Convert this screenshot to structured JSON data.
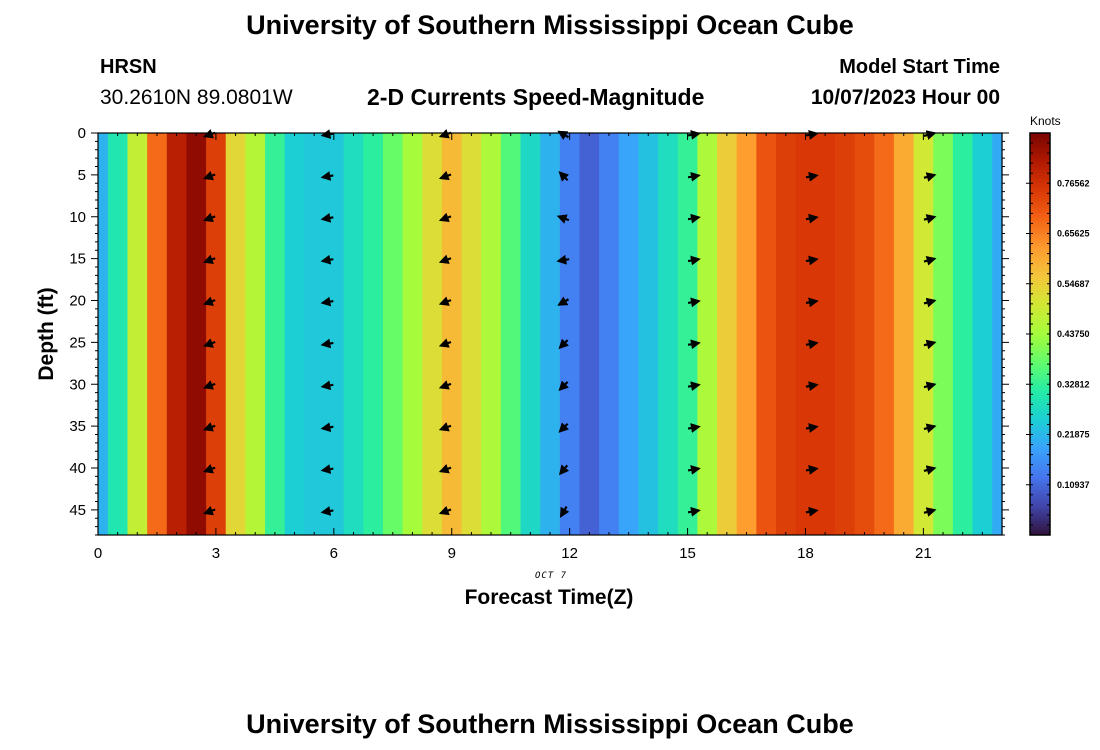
{
  "header": {
    "title": "University of Southern Mississippi Ocean Cube",
    "station": "HRSN",
    "coordinates": "30.2610N  89.0801W",
    "subtitle": "2-D Currents Speed-Magnitude",
    "model_start_label": "Model Start Time",
    "model_start_value": "10/07/2023 Hour 00"
  },
  "footer": {
    "title": "University of Southern Mississippi Ocean Cube"
  },
  "chart_data": {
    "type": "heatmap",
    "xlabel": "Forecast Time(Z)",
    "ylabel": "Depth (ft)",
    "date_label": "OCT 7",
    "x_ticks": [
      0,
      3,
      6,
      9,
      12,
      15,
      18,
      21
    ],
    "y_ticks": [
      0,
      5,
      10,
      15,
      20,
      25,
      30,
      35,
      40,
      45
    ],
    "xlim": [
      0,
      23
    ],
    "ylim": [
      48,
      0
    ],
    "colorbar": {
      "label": "Knots",
      "ticks": [
        "0.10937",
        "0.21875",
        "0.32812",
        "0.43750",
        "0.54687",
        "0.65625",
        "0.76562"
      ],
      "range": [
        0.0,
        0.875
      ],
      "colormap": [
        "#30123b",
        "#4145ab",
        "#4675ed",
        "#39a2fc",
        "#1bcfd4",
        "#24eca6",
        "#61fc6c",
        "#a4fc3b",
        "#d1e834",
        "#f3c63a",
        "#fe9b2d",
        "#f36315",
        "#d93806",
        "#b11901",
        "#7a0402"
      ]
    },
    "hours": [
      0,
      0.5,
      1,
      1.5,
      2,
      2.5,
      3,
      3.5,
      4,
      4.5,
      5,
      5.5,
      6,
      6.5,
      7,
      7.5,
      8,
      8.5,
      9,
      9.5,
      10,
      10.5,
      11,
      11.5,
      12,
      12.5,
      13,
      13.5,
      14,
      14.5,
      15,
      15.5,
      16,
      16.5,
      17,
      17.5,
      18,
      18.5,
      19,
      19.5,
      20,
      20.5,
      21,
      21.5,
      22,
      22.5,
      23
    ],
    "speed_knots": [
      0.21,
      0.3,
      0.48,
      0.68,
      0.8,
      0.85,
      0.74,
      0.53,
      0.46,
      0.33,
      0.25,
      0.24,
      0.24,
      0.28,
      0.32,
      0.38,
      0.44,
      0.52,
      0.58,
      0.52,
      0.45,
      0.36,
      0.27,
      0.21,
      0.14,
      0.1,
      0.14,
      0.19,
      0.23,
      0.28,
      0.33,
      0.45,
      0.55,
      0.62,
      0.71,
      0.74,
      0.75,
      0.75,
      0.74,
      0.72,
      0.68,
      0.6,
      0.5,
      0.4,
      0.32,
      0.25,
      0.2
    ],
    "vector_hours": [
      2.85,
      5.85,
      8.85,
      11.85,
      15.15,
      18.15,
      21.15
    ],
    "vector_depths": [
      0,
      5,
      10,
      15,
      20,
      25,
      30,
      35,
      40,
      45
    ],
    "vector_direction_deg": [
      [
        200,
        200,
        200,
        200,
        200,
        200,
        200,
        200,
        200,
        200
      ],
      [
        190,
        190,
        190,
        190,
        190,
        190,
        190,
        190,
        190,
        190
      ],
      [
        200,
        200,
        200,
        200,
        200,
        200,
        200,
        200,
        200,
        200
      ],
      [
        150,
        135,
        160,
        190,
        210,
        225,
        225,
        225,
        230,
        240
      ],
      [
        10,
        10,
        10,
        10,
        10,
        10,
        10,
        10,
        10,
        10
      ],
      [
        10,
        10,
        10,
        10,
        10,
        10,
        10,
        10,
        10,
        10
      ],
      [
        15,
        15,
        15,
        15,
        15,
        15,
        15,
        15,
        15,
        15
      ]
    ]
  }
}
